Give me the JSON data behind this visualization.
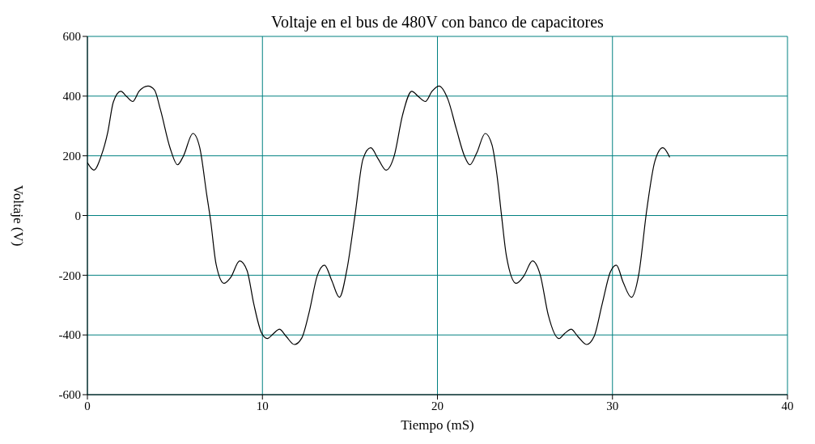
{
  "chart_data": {
    "type": "line",
    "title": "Voltaje en el bus de 480V con banco de capacitores",
    "xlabel": "Tiempo (mS)",
    "ylabel": "Voltaje (V)",
    "x": [
      0,
      0.37,
      0.79,
      1.17,
      1.48,
      1.91,
      2.25,
      2.59,
      2.95,
      3.46,
      3.83,
      4.18,
      4.72,
      5.15,
      5.49,
      6.03,
      6.42,
      6.81,
      7.04,
      7.35,
      7.81,
      8.19,
      8.7,
      9.12,
      9.51,
      9.94,
      10.28,
      10.62,
      10.97,
      11.36,
      11.82,
      12.25,
      12.67,
      13.13,
      13.55,
      13.95,
      14.4,
      14.83,
      15.29,
      15.75,
      16.19,
      16.61,
      17.07,
      17.53,
      18,
      18.53,
      18.92,
      19.31,
      19.69,
      20.08,
      20.6,
      21.08,
      21.54,
      21.85,
      22.24,
      22.73,
      23.12,
      23.4,
      23.66,
      23.94,
      24.5,
      24.94,
      25.43,
      25.87,
      26.33,
      26.94,
      27.25,
      27.64,
      28.02,
      28.52,
      28.95,
      29.41,
      29.88,
      30.22,
      30.62,
      31.08,
      31.5,
      31.96,
      32.42,
      32.88,
      33.27
    ],
    "series": [
      {
        "color": "#000000",
        "values": [
          177,
          152,
          200,
          281,
          380,
          416,
          398,
          382,
          416,
          434,
          421,
          353,
          227,
          170,
          200,
          275,
          227,
          73,
          -17,
          -162,
          -227,
          -207,
          -152,
          -184,
          -297,
          -392,
          -412,
          -396,
          -381,
          -405,
          -432,
          -410,
          -324,
          -202,
          -166,
          -216,
          -274,
          -180,
          1,
          190,
          227,
          190,
          152,
          200,
          335,
          416,
          398,
          382,
          416,
          434,
          389,
          290,
          200,
          170,
          209,
          275,
          236,
          136,
          1,
          -135,
          -227,
          -202,
          -152,
          -198,
          -333,
          -412,
          -396,
          -381,
          -405,
          -432,
          -405,
          -297,
          -189,
          -166,
          -225,
          -274,
          -198,
          19,
          181,
          227,
          195
        ]
      }
    ],
    "xlim": [
      0,
      40
    ],
    "xticks": [
      0,
      10,
      20,
      30,
      40
    ],
    "ylim": [
      -600,
      600
    ],
    "yticks": [
      -600,
      -400,
      -200,
      0,
      200,
      400,
      600
    ],
    "grid": true,
    "marker": "none",
    "line_style": "solid"
  }
}
